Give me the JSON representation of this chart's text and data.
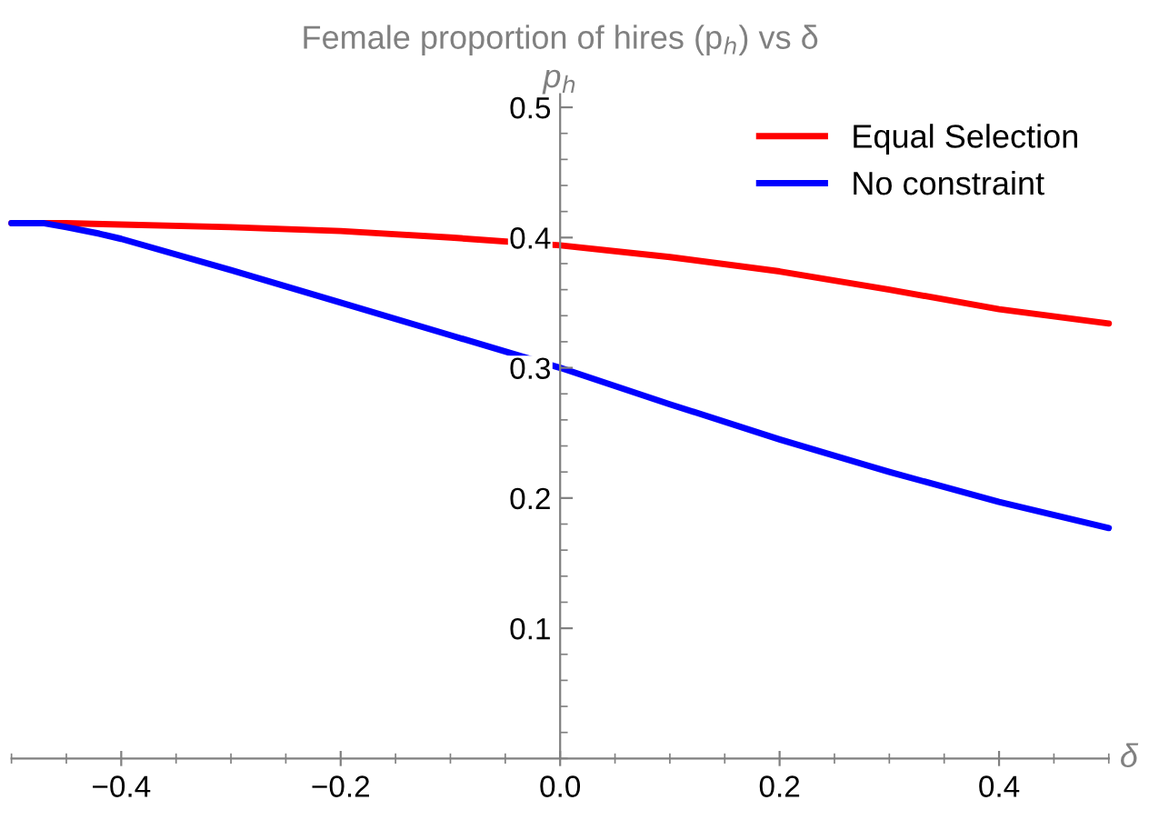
{
  "chart_data": {
    "type": "line",
    "title": "Female proportion of hires (p$_{h}$) vs δ",
    "xlabel": "δ",
    "ylabel": "p$_{h}$",
    "series": [
      {
        "name": "Equal Selection",
        "color": "#ff0000",
        "x": [
          -0.5,
          -0.45,
          -0.4,
          -0.3,
          -0.2,
          -0.1,
          0.0,
          0.1,
          0.2,
          0.3,
          0.4,
          0.5
        ],
        "values": [
          0.411,
          0.411,
          0.41,
          0.408,
          0.405,
          0.4,
          0.394,
          0.385,
          0.374,
          0.36,
          0.345,
          0.334
        ]
      },
      {
        "name": "No constraint",
        "color": "#0000ff",
        "x": [
          -0.5,
          -0.47,
          -0.45,
          -0.42,
          -0.4,
          -0.3,
          -0.2,
          -0.1,
          0.0,
          0.1,
          0.2,
          0.3,
          0.4,
          0.5
        ],
        "values": [
          0.411,
          0.411,
          0.408,
          0.403,
          0.399,
          0.375,
          0.35,
          0.325,
          0.3,
          0.272,
          0.245,
          0.22,
          0.197,
          0.177
        ]
      }
    ],
    "xlim": [
      -0.5,
      0.5
    ],
    "ylim": [
      0,
      0.51
    ],
    "xticks": [
      {
        "value": -0.4,
        "label": "−0.4"
      },
      {
        "value": -0.2,
        "label": "−0.2"
      },
      {
        "value": 0.0,
        "label": "0.0"
      },
      {
        "value": 0.2,
        "label": "0.2"
      },
      {
        "value": 0.4,
        "label": "0.4"
      }
    ],
    "yticks": [
      0.1,
      0.2,
      0.3,
      0.4,
      0.5
    ],
    "legend": "top right",
    "grid": false,
    "marker": "none",
    "line_style": "solid"
  }
}
